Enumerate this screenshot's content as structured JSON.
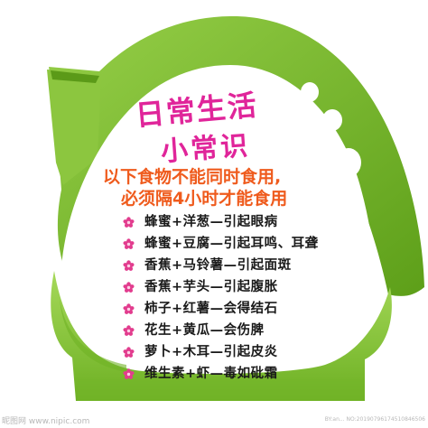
{
  "sign": {
    "title_line1": "日常生活",
    "title_line2": "小常识",
    "subtitle_line1": "以下食物不能同时食用,",
    "subtitle_line2": "必须隔4小时才能食用",
    "tips": [
      "蜂蜜+洋葱—引起眼病",
      "蜂蜜+豆腐—引起耳鸣、耳聋",
      "香蕉+马铃薯—引起面斑",
      "香蕉+芋头—引起腹胀",
      "柿子+红薯—会得结石",
      "花生+黄瓜—会伤脾",
      "萝卜+木耳—引起皮炎",
      "维生素+虾—毒如砒霜"
    ],
    "bullet_icon": "pink-flower-icon"
  },
  "watermark": {
    "left": "昵图网 www.nipic.com",
    "right": "BY:an... NO:20190796174510846506"
  },
  "colors": {
    "house_green_dark": "#5fa516",
    "house_green_light": "#8cc63f",
    "title_pink": "#e0259a",
    "subtitle_orange": "#ef5b1d",
    "flower_pink": "#e23c8e",
    "text_dark": "#1a1a1a"
  }
}
